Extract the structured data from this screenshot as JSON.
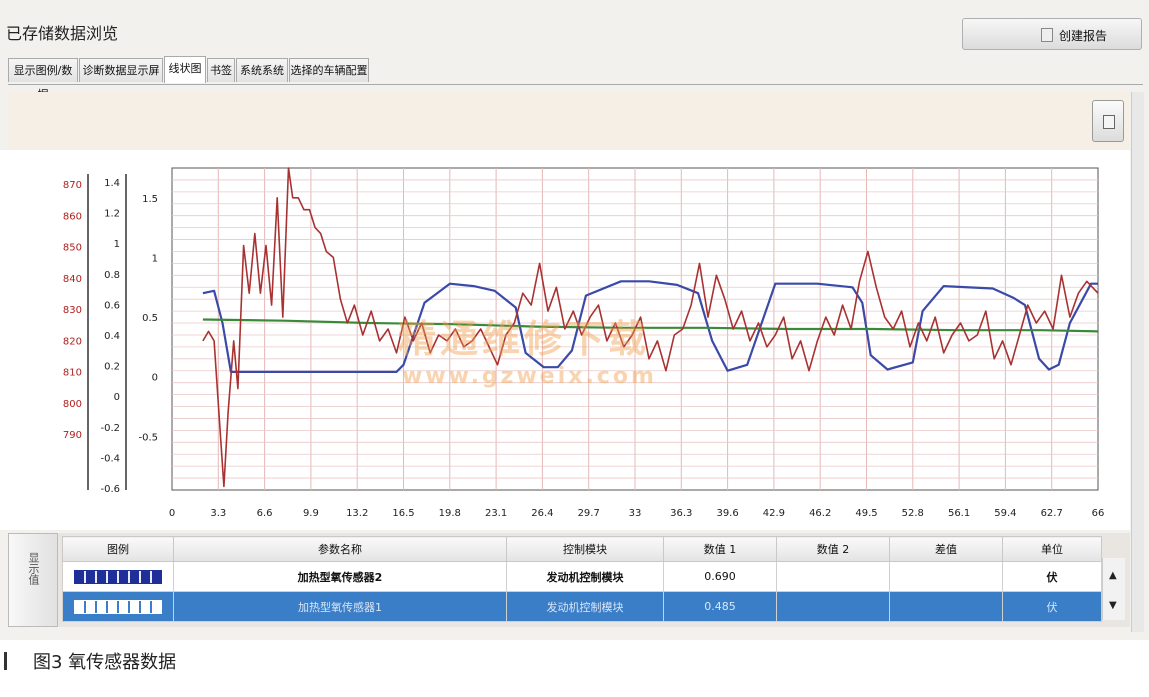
{
  "window": {
    "title": "已存储数据浏览"
  },
  "toolbar": {
    "report_label": "创建报告"
  },
  "tabs": [
    {
      "label": "显示图例/数据"
    },
    {
      "label": "诊断数据显示屏"
    },
    {
      "label": "线状图"
    },
    {
      "label": "书签"
    },
    {
      "label": "系统系统"
    },
    {
      "label": "选择的车辆配置"
    }
  ],
  "watermark": {
    "line1": "精通维修下载",
    "line2": "www.gzweix.com"
  },
  "colors": {
    "series_red": "#a83232",
    "series_blue": "#3a4aa8",
    "series_green": "#3a8a3a",
    "selected_row": "#3b7ec8"
  },
  "chart_data": {
    "type": "line",
    "x_ticks": [
      "0",
      "3.3",
      "6.6",
      "9.9",
      "13.2",
      "16.5",
      "19.8",
      "23.1",
      "26.4",
      "29.7",
      "33",
      "36.3",
      "39.6",
      "42.9",
      "46.2",
      "49.5",
      "52.8",
      "56.1",
      "59.4",
      "62.7",
      "66"
    ],
    "y_left_ticks_red": [
      "870",
      "860",
      "850",
      "840",
      "830",
      "820",
      "810",
      "800",
      "790"
    ],
    "y_left_ticks_2": [
      "1.4",
      "1.2",
      "1",
      "0.8",
      "0.6",
      "0.4",
      "0.2",
      "0",
      "-0.2",
      "-0.4",
      "-0.6"
    ],
    "y_main_ticks": [
      "1.5",
      "1",
      "0.5",
      "0",
      "-0.5"
    ],
    "ylim_main": [
      -0.95,
      1.75
    ],
    "xlim": [
      0,
      66
    ],
    "grid": true,
    "series": [
      {
        "color": "#3a4aa8",
        "x": [
          2.2,
          3.0,
          3.6,
          4.2,
          16.0,
          16.5,
          18.0,
          19.8,
          21.5,
          23.0,
          24.5,
          25.2,
          26.5,
          27.5,
          28.5,
          29.5,
          32.0,
          34.0,
          36.0,
          37.5,
          38.5,
          39.6,
          41.0,
          43.0,
          46.0,
          48.5,
          49.2,
          49.8,
          51.0,
          52.8,
          53.5,
          55.0,
          58.5,
          60.0,
          60.8,
          61.8,
          62.5,
          63.2,
          64.0,
          65.5,
          66.0
        ],
        "values": [
          0.7,
          0.72,
          0.45,
          0.04,
          0.04,
          0.1,
          0.62,
          0.78,
          0.76,
          0.72,
          0.58,
          0.2,
          0.08,
          0.08,
          0.22,
          0.68,
          0.8,
          0.8,
          0.77,
          0.7,
          0.3,
          0.05,
          0.1,
          0.78,
          0.78,
          0.75,
          0.62,
          0.18,
          0.06,
          0.12,
          0.55,
          0.76,
          0.74,
          0.66,
          0.6,
          0.15,
          0.06,
          0.1,
          0.45,
          0.78,
          0.78
        ]
      },
      {
        "color": "#3a8a3a",
        "x": [
          2.2,
          8.0,
          14.0,
          20.0,
          26.0,
          32.0,
          38.0,
          44.0,
          50.0,
          56.0,
          62.0,
          66.0
        ],
        "values": [
          0.48,
          0.47,
          0.45,
          0.44,
          0.42,
          0.41,
          0.41,
          0.4,
          0.4,
          0.39,
          0.39,
          0.38
        ]
      },
      {
        "color": "#a83232",
        "x": [
          2.2,
          2.6,
          3.0,
          3.4,
          3.7,
          4.0,
          4.4,
          4.7,
          5.1,
          5.5,
          5.9,
          6.3,
          6.7,
          7.1,
          7.5,
          7.9,
          8.3,
          8.6,
          9.0,
          9.4,
          9.8,
          10.2,
          10.6,
          11.0,
          11.5,
          12.0,
          12.5,
          13.0,
          13.6,
          14.2,
          14.8,
          15.4,
          16.0,
          16.6,
          17.2,
          17.8,
          18.4,
          19.0,
          19.6,
          20.2,
          20.8,
          21.4,
          22.0,
          22.6,
          23.2,
          23.8,
          24.4,
          25.0,
          25.6,
          26.2,
          26.8,
          27.4,
          28.0,
          28.6,
          29.2,
          29.8,
          30.4,
          31.0,
          31.6,
          32.2,
          32.8,
          33.4,
          34.0,
          34.6,
          35.2,
          35.8,
          36.4,
          37.0,
          37.6,
          38.2,
          38.8,
          39.4,
          40.0,
          40.6,
          41.2,
          41.8,
          42.4,
          43.0,
          43.6,
          44.2,
          44.8,
          45.4,
          46.0,
          46.6,
          47.2,
          47.8,
          48.4,
          49.0,
          49.6,
          50.2,
          50.8,
          51.4,
          52.0,
          52.6,
          53.2,
          53.8,
          54.4,
          55.0,
          55.6,
          56.2,
          56.8,
          57.4,
          58.0,
          58.6,
          59.2,
          59.8,
          60.4,
          61.0,
          61.6,
          62.2,
          62.8,
          63.4,
          64.0,
          64.6,
          65.2,
          66.0
        ],
        "values": [
          0.3,
          0.38,
          0.3,
          -0.4,
          -0.92,
          -0.3,
          0.3,
          -0.1,
          1.1,
          0.7,
          1.2,
          0.7,
          1.1,
          0.6,
          1.5,
          0.5,
          1.75,
          1.5,
          1.5,
          1.4,
          1.4,
          1.25,
          1.2,
          1.05,
          1.0,
          0.65,
          0.45,
          0.6,
          0.35,
          0.55,
          0.3,
          0.4,
          0.2,
          0.5,
          0.3,
          0.45,
          0.2,
          0.35,
          0.3,
          0.4,
          0.25,
          0.3,
          0.4,
          0.25,
          0.1,
          0.35,
          0.45,
          0.7,
          0.6,
          0.95,
          0.55,
          0.75,
          0.4,
          0.55,
          0.35,
          0.5,
          0.6,
          0.3,
          0.45,
          0.25,
          0.35,
          0.5,
          0.15,
          0.3,
          0.05,
          0.35,
          0.4,
          0.6,
          0.95,
          0.5,
          0.85,
          0.65,
          0.4,
          0.55,
          0.3,
          0.45,
          0.25,
          0.35,
          0.5,
          0.15,
          0.3,
          0.05,
          0.3,
          0.5,
          0.35,
          0.6,
          0.4,
          0.8,
          1.05,
          0.75,
          0.5,
          0.4,
          0.55,
          0.25,
          0.45,
          0.3,
          0.5,
          0.2,
          0.35,
          0.45,
          0.3,
          0.35,
          0.55,
          0.15,
          0.3,
          0.1,
          0.35,
          0.6,
          0.45,
          0.55,
          0.4,
          0.85,
          0.5,
          0.7,
          0.8,
          0.7
        ]
      }
    ]
  },
  "legend_table": {
    "side_label": "显示值",
    "columns": [
      "图例",
      "参数名称",
      "控制模块",
      "数值 1",
      "数值 2",
      "差值",
      "单位"
    ],
    "rows": [
      {
        "name": "加热型氧传感器2",
        "module": "发动机控制模块",
        "value1": "0.690",
        "value2": "",
        "diff": "",
        "unit": "伏"
      },
      {
        "name": "加热型氧传感器1",
        "module": "发动机控制模块",
        "value1": "0.485",
        "value2": "",
        "diff": "",
        "unit": "伏"
      }
    ]
  },
  "caption": {
    "text": "图3  氧传感器数据"
  }
}
